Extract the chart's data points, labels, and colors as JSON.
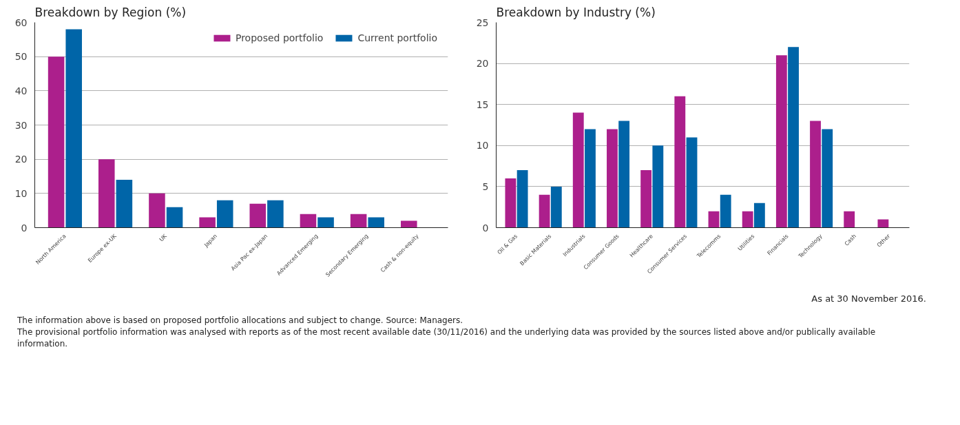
{
  "chart_data": [
    {
      "type": "bar",
      "title": "Breakdown by Region (%)",
      "categories": [
        "North America",
        "Europe ex-UK",
        "UK",
        "Japan",
        "Asia Pac ex-Japan",
        "Advanced Emerging",
        "Secondary Emerging",
        "Cash & non-equity"
      ],
      "series": [
        {
          "name": "Proposed portfolio",
          "color": "#ac1f8c",
          "values": [
            50,
            20,
            10,
            3,
            7,
            4,
            4,
            2
          ]
        },
        {
          "name": "Current portfolio",
          "color": "#0065a8",
          "values": [
            58,
            14,
            6,
            8,
            8,
            3,
            3,
            0
          ]
        }
      ],
      "ylim": [
        0,
        60
      ],
      "yticks": [
        0,
        10,
        20,
        30,
        40,
        50,
        60
      ],
      "grid": "y",
      "legend": "top right"
    },
    {
      "type": "bar",
      "title": "Breakdown by Industry (%)",
      "categories": [
        "Oil & Gas",
        "Basic Materials",
        "Industrials",
        "Consumer Goods",
        "Healthcare",
        "Consumer Services",
        "Telecomms",
        "Utilities",
        "Financials",
        "Technology",
        "Cash",
        "Other"
      ],
      "series": [
        {
          "color": "#ac1f8c",
          "values": [
            6,
            4,
            14,
            12,
            7,
            16,
            2,
            2,
            21,
            13,
            2,
            1
          ]
        },
        {
          "color": "#0065a8",
          "values": [
            7,
            5,
            12,
            13,
            10,
            11,
            4,
            3,
            22,
            12,
            0,
            0
          ]
        }
      ],
      "ylim": [
        0,
        25
      ],
      "yticks": [
        0,
        5,
        10,
        15,
        20,
        25
      ],
      "grid": "y",
      "annotations": [
        "As at 30 November 2016.",
        "The information above is based on proposed portfolio allocations and subject to change. Source: Managers.",
        "The provisional portfolio information was analysed with reports as of the most recent available date (30/11/2016) and the underlying data was provided by the sources listed above and/or publically available information."
      ]
    }
  ]
}
